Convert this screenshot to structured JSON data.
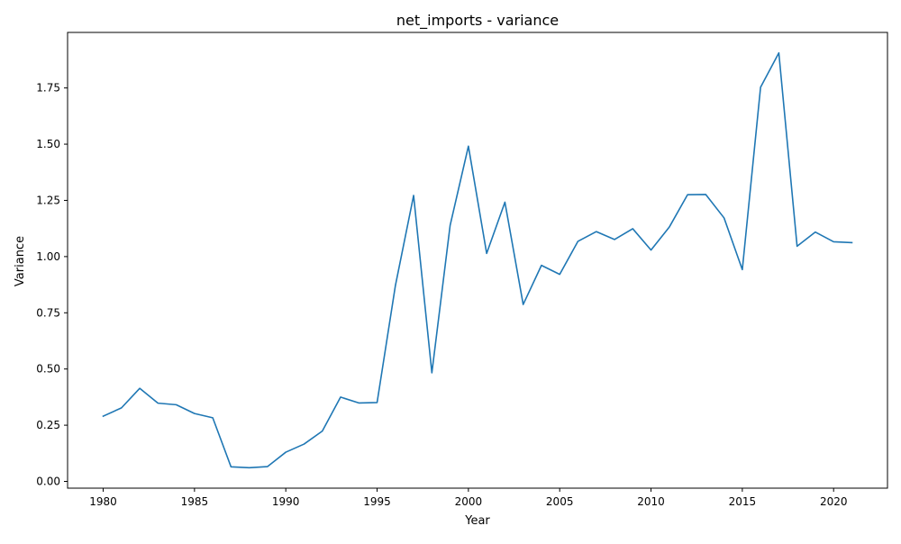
{
  "chart_data": {
    "type": "line",
    "title": "net_imports - variance",
    "xlabel": "Year",
    "ylabel": "Variance",
    "xlim": [
      1978.05,
      2022.95
    ],
    "ylim": [
      -0.03,
      1.997
    ],
    "grid": false,
    "legend": "none",
    "x_ticks": [
      1980,
      1985,
      1990,
      1995,
      2000,
      2005,
      2010,
      2015,
      2020
    ],
    "y_ticks": [
      0.0,
      0.25,
      0.5,
      0.75,
      1.0,
      1.25,
      1.5,
      1.75
    ],
    "y_tick_labels": [
      "0.00",
      "0.25",
      "0.50",
      "0.75",
      "1.00",
      "1.25",
      "1.50",
      "1.75"
    ],
    "series": [
      {
        "color": "#1f77b4",
        "x": [
          1980,
          1981,
          1982,
          1983,
          1984,
          1985,
          1986,
          1987,
          1988,
          1989,
          1990,
          1991,
          1992,
          1993,
          1994,
          1995,
          1996,
          1997,
          1998,
          1999,
          2000,
          2001,
          2002,
          2003,
          2004,
          2005,
          2006,
          2007,
          2008,
          2009,
          2010,
          2011,
          2012,
          2013,
          2014,
          2015,
          2016,
          2017,
          2018,
          2019,
          2020,
          2021
        ],
        "values": [
          0.29,
          0.327,
          0.414,
          0.348,
          0.341,
          0.302,
          0.283,
          0.065,
          0.061,
          0.066,
          0.13,
          0.166,
          0.224,
          0.375,
          0.349,
          0.351,
          0.87,
          1.272,
          0.483,
          1.139,
          1.491,
          1.014,
          1.242,
          0.787,
          0.961,
          0.921,
          1.068,
          1.111,
          1.076,
          1.124,
          1.029,
          1.131,
          1.275,
          1.276,
          1.172,
          0.942,
          1.753,
          1.906,
          1.046,
          1.109,
          1.066,
          1.062
        ]
      }
    ]
  }
}
